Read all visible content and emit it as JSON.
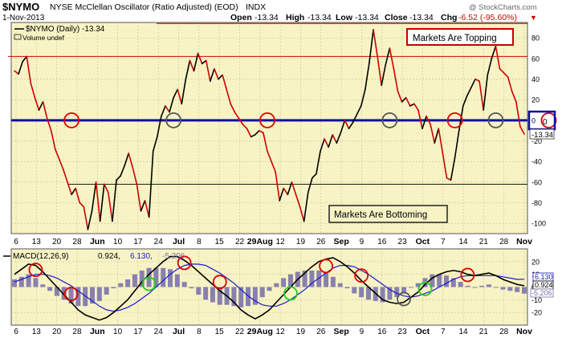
{
  "header": {
    "symbol": "$NYMO",
    "name": "NYSE McClellan Oscillator (Ratio Adjusted) (EOD)",
    "exchange": "INDX",
    "date": "1-Nov-2013",
    "open_label": "Open",
    "open": "-13.34",
    "high_label": "High",
    "high": "-13.34",
    "low_label": "Low",
    "low": "-13.34",
    "close_label": "Close",
    "close": "-13.34",
    "chg_label": "Chg",
    "chg": "-6.52 (-95.60%)",
    "chg_arrow": "▼",
    "watermark": "@ StockCharts.com"
  },
  "main_panel": {
    "legend_series": "$NYMO (Daily) -13.34",
    "legend_volume": "Volume undef",
    "last_value_label": "-13.34",
    "zero_box_value": "0",
    "annotation_top": "Markets Are Topping",
    "annotation_bottom": "Markets Are Bottoming"
  },
  "macd_panel": {
    "legend_name": "MACD(12,26,9)",
    "legend_macd": "0.924,",
    "legend_signal": "6.130,",
    "legend_hist": "-5.206",
    "label_macd": "0.924",
    "label_signal": "6.130",
    "label_hist": "-5.206"
  },
  "x_axis_labels": [
    "6",
    "13",
    "20",
    "28",
    "Jun",
    "10",
    "17",
    "24",
    "Jul",
    "8",
    "15",
    "22",
    "29Aug",
    "12",
    "19",
    "26",
    "Sep",
    "9",
    "16",
    "23",
    "Oct",
    "7",
    "14",
    "21",
    "28",
    "Nov"
  ],
  "colors": {
    "background": "#f7f3c4",
    "zero_line": "#1010a0",
    "up_line": "#000000",
    "down_line": "#cc0000",
    "resistance_line": "#cc0000",
    "support_line": "#000000",
    "circle_red": "#dd0000",
    "circle_gray": "#555555",
    "circle_green": "#22cc22",
    "macd_line": "#000000",
    "signal_line": "#1a1ad0",
    "histogram": "#8880b0"
  },
  "chart_data": [
    {
      "type": "line",
      "title": "$NYMO NYSE McClellan Oscillator (Ratio Adjusted) (EOD)",
      "ylim": [
        -110,
        95
      ],
      "y_ticks": [
        80,
        60,
        40,
        20,
        0,
        -20,
        -40,
        -60,
        -80,
        -100
      ],
      "reference_lines": [
        {
          "name": "Markets Are Topping",
          "value": 62
        },
        {
          "name": "zero",
          "value": 0
        },
        {
          "name": "Markets Are Bottoming",
          "value": -62
        }
      ],
      "series": [
        {
          "values": [
            48,
            45,
            57,
            62,
            36,
            22,
            10,
            18,
            2,
            -10,
            -28,
            -38,
            -48,
            -60,
            -72,
            -66,
            -80,
            -84,
            -106,
            -88,
            -60,
            -98,
            -62,
            -70,
            -98,
            -58,
            -54,
            -44,
            -32,
            -46,
            -62,
            -88,
            -78,
            -94,
            -30,
            -16,
            4,
            14,
            8,
            22,
            30,
            16,
            40,
            58,
            48,
            65,
            55,
            58,
            38,
            50,
            40,
            44,
            30,
            16,
            8,
            2,
            -4,
            -8,
            -16,
            -14,
            -10,
            -12,
            -30,
            -40,
            -50,
            -78,
            -66,
            -72,
            -60,
            -72,
            -84,
            -98,
            -70,
            -56,
            -52,
            -30,
            -18,
            -26,
            -14,
            -22,
            -12,
            0,
            -8,
            -2,
            6,
            14,
            30,
            56,
            88,
            62,
            34,
            54,
            70,
            50,
            28,
            18,
            22,
            14,
            16,
            10,
            -8,
            4,
            -4,
            -22,
            -8,
            -32,
            -56,
            -58,
            -36,
            -10,
            14,
            24,
            32,
            40,
            38,
            10,
            44,
            60,
            72,
            50,
            46,
            42,
            28,
            18,
            -6,
            -13.34
          ],
          "up_color": "black",
          "down_color": "red"
        }
      ],
      "annotations": [
        {
          "text": "Markets Are Topping",
          "type": "box"
        },
        {
          "text": "Markets Are Bottoming",
          "type": "box"
        }
      ],
      "markers": [
        {
          "index": 14,
          "value": 0,
          "color": "red"
        },
        {
          "index": 39,
          "value": 0,
          "color": "gray"
        },
        {
          "index": 62,
          "value": 0,
          "color": "red"
        },
        {
          "index": 92,
          "value": 0,
          "color": "gray"
        },
        {
          "index": 108,
          "value": 0,
          "color": "red"
        },
        {
          "index": 118,
          "value": 0,
          "color": "gray"
        },
        {
          "index": 131,
          "value": 0,
          "color": "red"
        }
      ]
    },
    {
      "type": "line",
      "title": "MACD(12,26,9) 0.924, 6.130, -5.206",
      "ylim": [
        -30,
        30
      ],
      "y_ticks": [
        20,
        10,
        0,
        -10,
        -20
      ],
      "series": [
        {
          "name": "MACD",
          "values": [
            10,
            14,
            18,
            17,
            12,
            6,
            0,
            -6,
            -12,
            -18,
            -22,
            -24,
            -26,
            -24,
            -20,
            -15,
            -10,
            -3,
            4,
            10,
            15,
            20,
            24,
            24,
            21,
            17,
            12,
            7,
            2,
            -3,
            -7,
            -12,
            -18,
            -22,
            -25,
            -22,
            -18,
            -12,
            -6,
            0,
            6,
            11,
            16,
            20,
            22,
            23,
            20,
            16,
            11,
            5,
            0,
            -5,
            -10,
            -12,
            -13,
            -12,
            -8,
            -4,
            2,
            7,
            10,
            12,
            13,
            12,
            10,
            9,
            10,
            11,
            9,
            6,
            4,
            2,
            1
          ]
        },
        {
          "name": "Signal",
          "values": [
            4,
            6,
            8,
            10,
            10,
            9,
            7,
            4,
            1,
            -3,
            -7,
            -11,
            -15,
            -18,
            -19,
            -18,
            -16,
            -13,
            -9,
            -5,
            0,
            5,
            10,
            14,
            17,
            18,
            18,
            17,
            14,
            11,
            7,
            3,
            -2,
            -7,
            -11,
            -14,
            -15,
            -15,
            -13,
            -10,
            -6,
            -2,
            3,
            7,
            11,
            15,
            17,
            17,
            16,
            13,
            10,
            6,
            2,
            -2,
            -5,
            -7,
            -8,
            -7,
            -5,
            -3,
            0,
            3,
            6,
            8,
            9,
            9,
            9,
            9,
            9,
            8,
            7,
            6,
            6.13
          ]
        },
        {
          "name": "Histogram",
          "values": [
            6,
            8,
            10,
            7,
            2,
            -3,
            -7,
            -10,
            -13,
            -15,
            -15,
            -13,
            -11,
            -6,
            -1,
            3,
            6,
            10,
            13,
            15,
            15,
            15,
            14,
            10,
            4,
            -1,
            -6,
            -10,
            -12,
            -14,
            -14,
            -15,
            -16,
            -15,
            -14,
            -8,
            -3,
            3,
            7,
            10,
            12,
            13,
            13,
            13,
            11,
            8,
            3,
            -1,
            -5,
            -8,
            -10,
            -11,
            -12,
            -10,
            -8,
            -5,
            0,
            3,
            7,
            10,
            10,
            9,
            7,
            4,
            1,
            0,
            1,
            2,
            0,
            -2,
            -3,
            -4,
            -5.206
          ]
        }
      ],
      "crossover_markers": [
        {
          "index": 3,
          "color": "red"
        },
        {
          "index": 8,
          "color": "red"
        },
        {
          "index": 19,
          "color": "green"
        },
        {
          "index": 24,
          "color": "red"
        },
        {
          "index": 29,
          "color": "red"
        },
        {
          "index": 39,
          "color": "green"
        },
        {
          "index": 44,
          "color": "red"
        },
        {
          "index": 49,
          "color": "red"
        },
        {
          "index": 55,
          "color": "gray"
        },
        {
          "index": 58,
          "color": "green"
        },
        {
          "index": 64,
          "color": "red"
        }
      ]
    }
  ]
}
